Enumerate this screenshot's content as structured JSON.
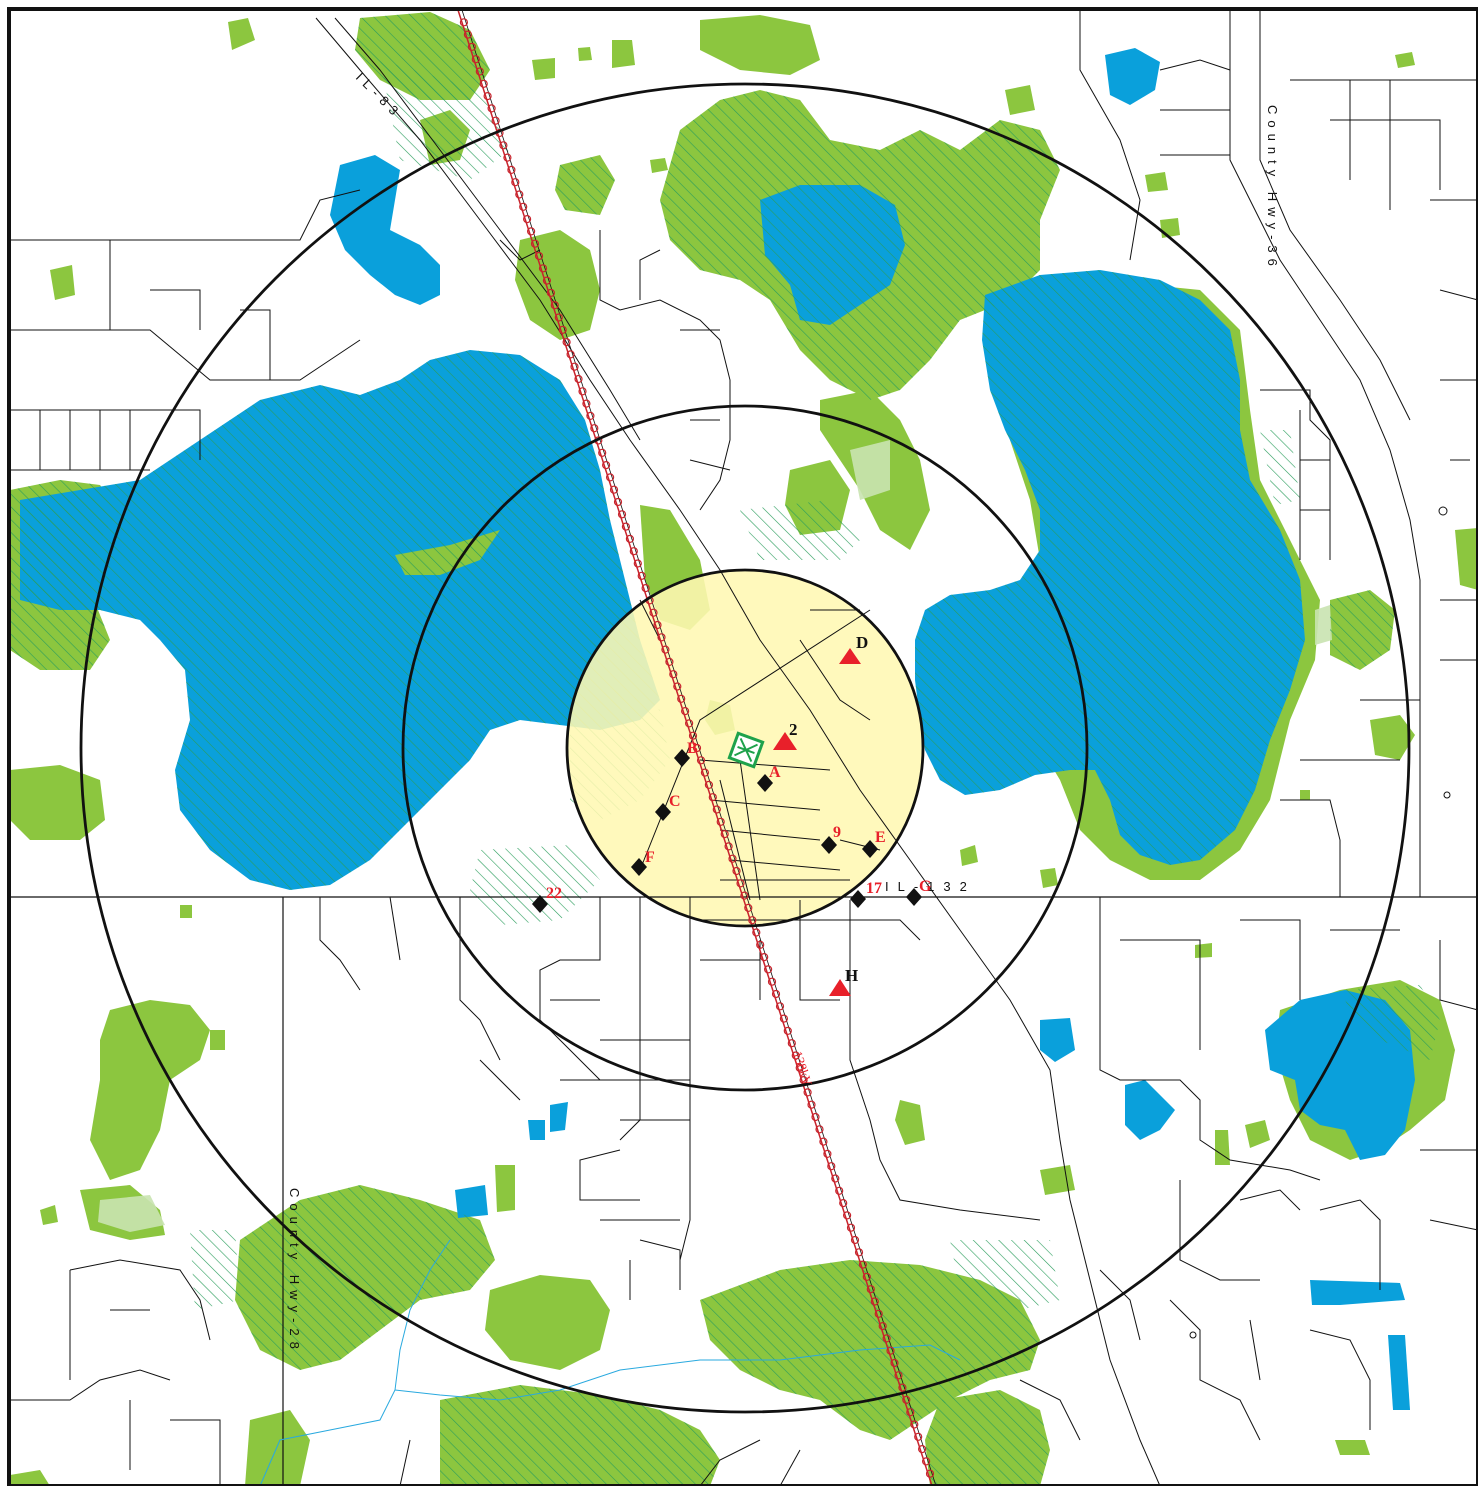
{
  "colors": {
    "water": "#0aa0db",
    "wetland": "#8cc63f",
    "wetland_light": "#c9e3b0",
    "hatch": "#2a9d5c",
    "buffer_fill": "#fff8b3",
    "marker_red": "#e8202a",
    "marker_black": "#111111",
    "site_icon": "#1ea24b",
    "transmission_line": "#c8232c",
    "stream": "#29a9df"
  },
  "roads": {
    "il83": "IL-83",
    "county36": "County Hwy-36",
    "county28": "County Hwy-28",
    "il132": "IL-132"
  },
  "transmission_line_label": "138kV",
  "site_icon": "substation-icon",
  "markers": {
    "triangles": [
      {
        "id": "t-d",
        "label": "D",
        "label_color": "black"
      },
      {
        "id": "t-2",
        "label": "2",
        "label_color": "black"
      },
      {
        "id": "t-h",
        "label": "H",
        "label_color": "black"
      }
    ],
    "diamonds": [
      {
        "id": "d-b",
        "label": "B"
      },
      {
        "id": "d-a",
        "label": "A"
      },
      {
        "id": "d-c",
        "label": "C"
      },
      {
        "id": "d-f",
        "label": "F"
      },
      {
        "id": "d-9",
        "label": "9"
      },
      {
        "id": "d-e",
        "label": "E"
      },
      {
        "id": "d-17",
        "label": "17"
      },
      {
        "id": "d-g",
        "label": "G"
      },
      {
        "id": "d-22",
        "label": "22"
      }
    ]
  }
}
